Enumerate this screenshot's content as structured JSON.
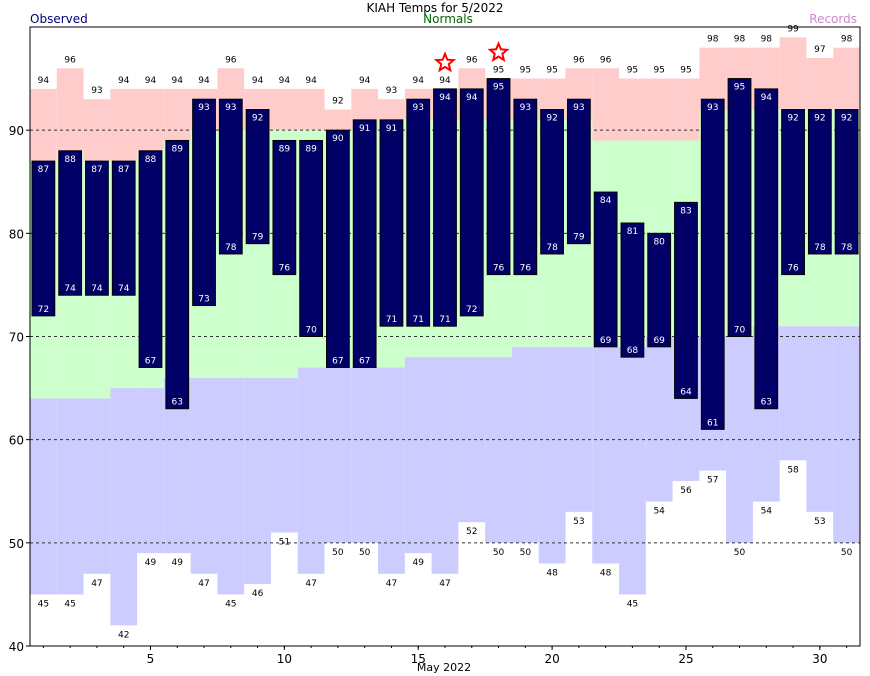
{
  "chart_data": {
    "type": "bar",
    "title": "KIAH Temps for 5/2022",
    "legend": {
      "observed": "Observed",
      "normals": "Normals",
      "records": "Records"
    },
    "xlabel": "May 2022",
    "x_ticks": [
      5,
      10,
      15,
      20,
      25,
      30
    ],
    "y_ticks": [
      40,
      50,
      60,
      70,
      80,
      90
    ],
    "ylim": [
      40,
      100
    ],
    "xlim": [
      0.5,
      31.5
    ],
    "grid": "dashed horizontal at 50,60,70,80,90",
    "days": [
      1,
      2,
      3,
      4,
      5,
      6,
      7,
      8,
      9,
      10,
      11,
      12,
      13,
      14,
      15,
      16,
      17,
      18,
      19,
      20,
      21,
      22,
      23,
      24,
      25,
      26,
      27,
      28,
      29,
      30,
      31
    ],
    "series": [
      {
        "name": "Observed",
        "key": "obs_high",
        "values": [
          87,
          88,
          87,
          87,
          88,
          89,
          93,
          93,
          92,
          89,
          89,
          90,
          91,
          91,
          93,
          94,
          94,
          95,
          93,
          92,
          93,
          84,
          81,
          80,
          83,
          93,
          95,
          94,
          92,
          92,
          92
        ]
      },
      {
        "name": "Observed",
        "key": "obs_low",
        "values": [
          72,
          74,
          74,
          74,
          67,
          63,
          73,
          78,
          79,
          76,
          70,
          67,
          67,
          71,
          71,
          71,
          72,
          76,
          76,
          78,
          79,
          69,
          68,
          69,
          64,
          61,
          70,
          63,
          76,
          78,
          78
        ]
      },
      {
        "name": "Normals",
        "key": "normal_high",
        "values": [
          87,
          88,
          87,
          87,
          88,
          89,
          90,
          90,
          90,
          90,
          90,
          90,
          90,
          91,
          91,
          91,
          91,
          91,
          91,
          91,
          91,
          89,
          89,
          89,
          89,
          92,
          92,
          92,
          92,
          92,
          92
        ]
      },
      {
        "name": "Normals",
        "key": "normal_low",
        "values": [
          64,
          64,
          64,
          65,
          65,
          66,
          66,
          66,
          66,
          66,
          67,
          67,
          67,
          67,
          68,
          68,
          68,
          68,
          69,
          69,
          69,
          69,
          69,
          70,
          70,
          70,
          70,
          71,
          71,
          71,
          71
        ]
      },
      {
        "name": "Records",
        "key": "record_high",
        "values": [
          94,
          96,
          93,
          94,
          94,
          94,
          94,
          96,
          94,
          94,
          94,
          92,
          94,
          93,
          94,
          94,
          96,
          95,
          95,
          95,
          96,
          96,
          95,
          95,
          95,
          98,
          98,
          98,
          99,
          97,
          98
        ]
      },
      {
        "name": "Records",
        "key": "record_low",
        "values": [
          45,
          45,
          47,
          42,
          49,
          49,
          47,
          45,
          46,
          51,
          47,
          50,
          50,
          47,
          49,
          47,
          52,
          50,
          50,
          48,
          53,
          48,
          45,
          54,
          56,
          57,
          50,
          54,
          58,
          53,
          50
        ]
      }
    ],
    "record_markers": [
      16,
      18
    ],
    "colors": {
      "observed": "#000066",
      "normals": "#ccffcc",
      "records_high": "#ffcccc",
      "records_low": "#ccccff",
      "legend_observed": "#000080",
      "legend_normals": "#006400",
      "legend_records": "#cc88cc",
      "star": "#ff0000"
    }
  }
}
